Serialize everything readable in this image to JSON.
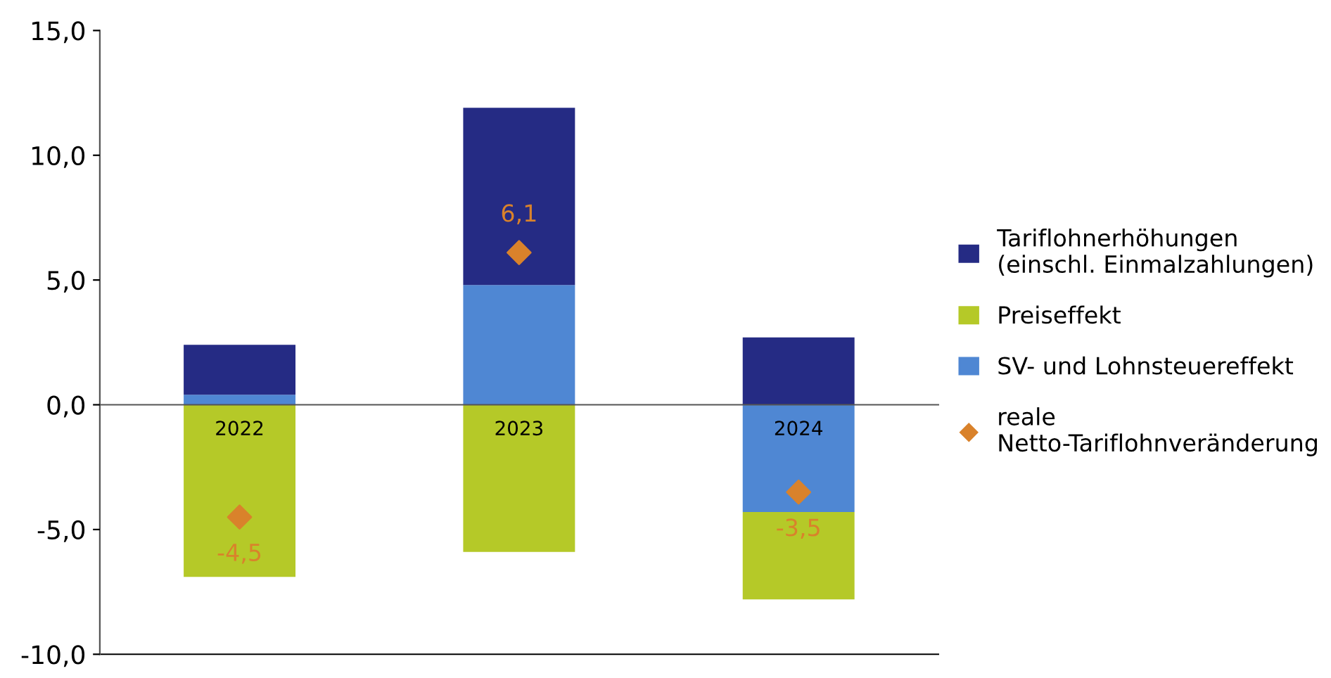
{
  "chart_data": {
    "type": "bar",
    "stacked": true,
    "categories": [
      "2022",
      "2023",
      "2024"
    ],
    "series": [
      {
        "name": "SV- und Lohnsteuereffekt",
        "color": "#4f87d3",
        "values": [
          0.4,
          4.8,
          -4.3
        ]
      },
      {
        "name": "Preiseffekt",
        "color": "#b5c928",
        "values": [
          -6.9,
          -5.9,
          -3.5
        ]
      },
      {
        "name": "Tariflohnerhöhungen (einschl. Einmalzahlungen)",
        "color": "#252b84",
        "values": [
          2.0,
          7.1,
          2.7
        ]
      },
      {
        "name": "reale Netto-Tariflohnveränderung",
        "type": "scatter",
        "marker": "diamond",
        "color": "#d9822b",
        "values": [
          -4.5,
          6.1,
          -3.5
        ],
        "value_labels": [
          "-4,5",
          "6,1",
          "-3,5"
        ]
      }
    ],
    "ylim": [
      -10,
      15
    ],
    "yticks": [
      {
        "value": -10,
        "label": "-10,0"
      },
      {
        "value": -5,
        "label": "-5,0"
      },
      {
        "value": 0,
        "label": "0,0"
      },
      {
        "value": 5,
        "label": "5,0"
      },
      {
        "value": 10,
        "label": "10,0"
      },
      {
        "value": 15,
        "label": "15,0"
      }
    ],
    "legend": "right",
    "grid": false
  }
}
